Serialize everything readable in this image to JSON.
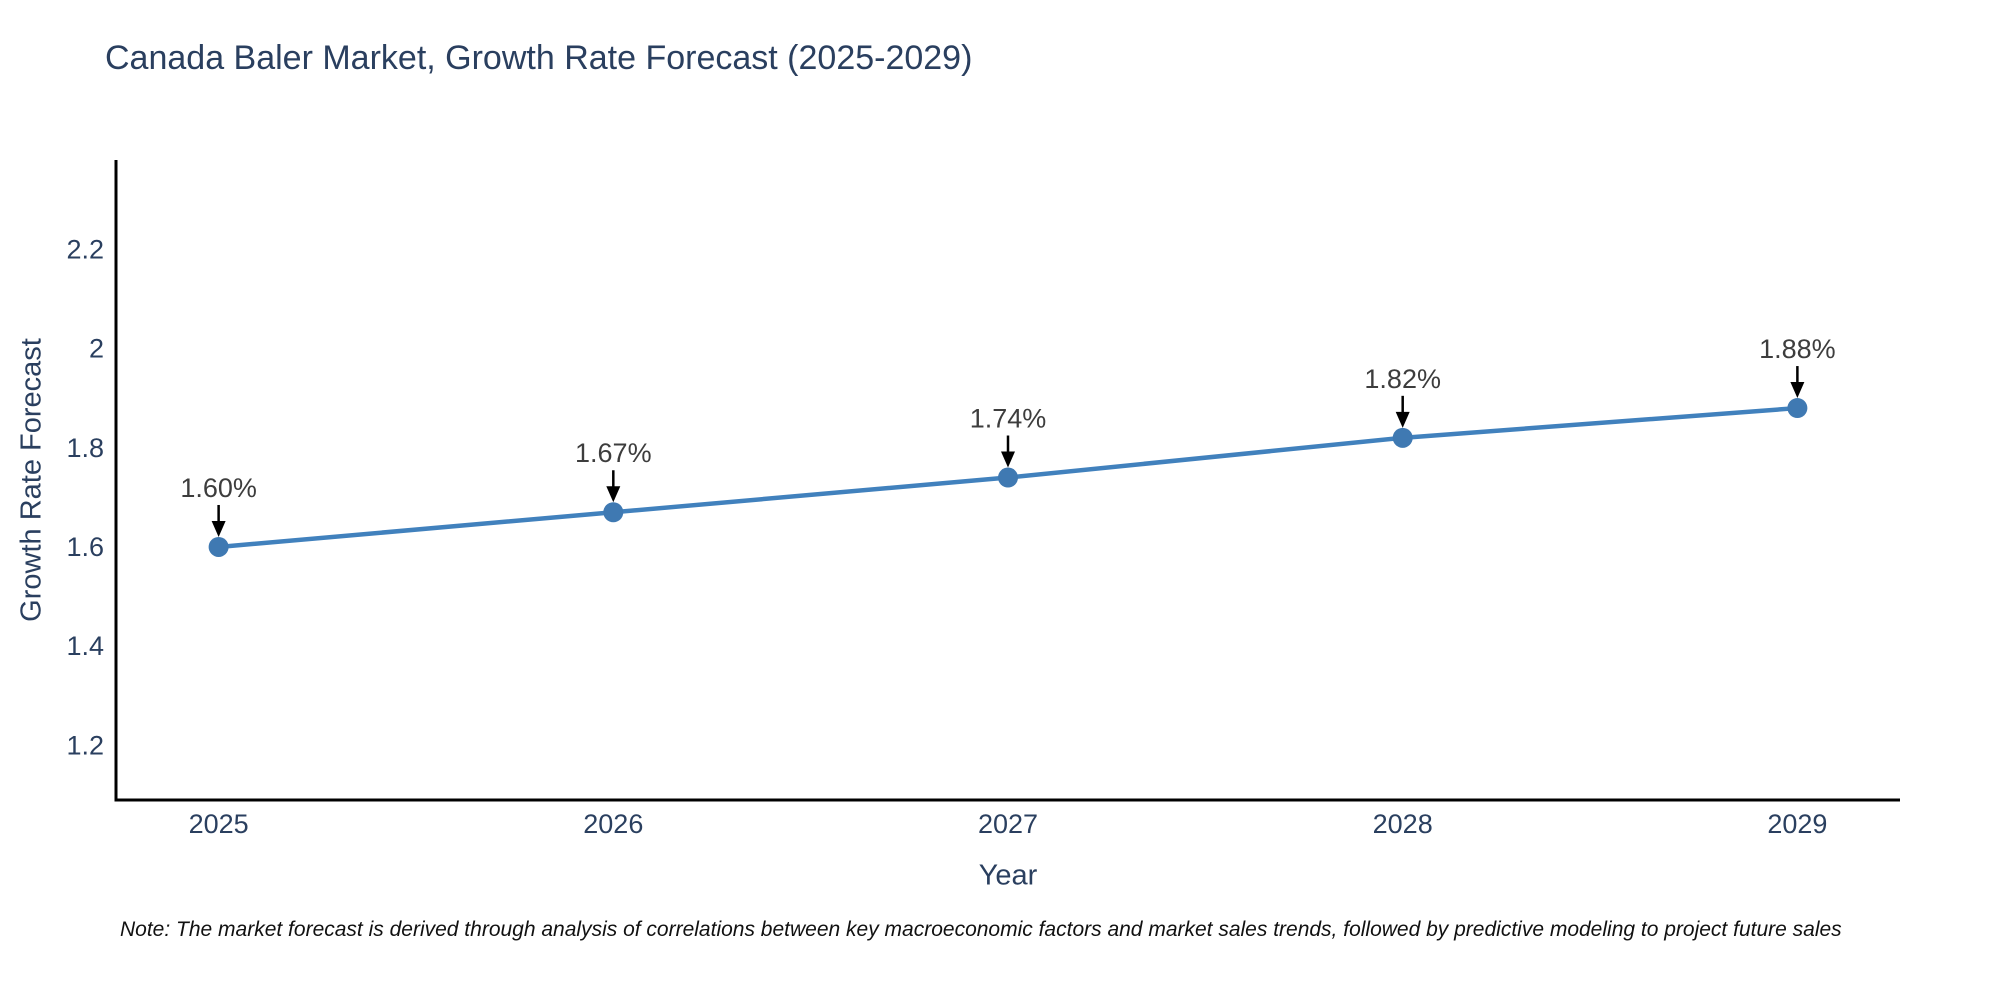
{
  "title": {
    "text": "Canada Baler Market, Growth Rate Forecast (2025-2029)",
    "color": "#2a3f5f"
  },
  "note": {
    "text": "Note: The market forecast is derived through analysis of correlations between key macroeconomic factors and market sales trends, followed by predictive modeling to project future sales",
    "color": "#111111"
  },
  "chart_data": {
    "type": "line",
    "title": "Canada Baler Market, Growth Rate Forecast (2025-2029)",
    "xlabel": "Year",
    "ylabel": "Growth Rate Forecast",
    "x": [
      2025,
      2026,
      2027,
      2028,
      2029
    ],
    "series": [
      {
        "name": "Growth Rate Forecast",
        "values": [
          1.6,
          1.67,
          1.74,
          1.82,
          1.88
        ]
      }
    ],
    "point_labels": [
      "1.60%",
      "1.67%",
      "1.74%",
      "1.82%",
      "1.88%"
    ],
    "xticks": [
      {
        "value": 2025,
        "label": "2025"
      },
      {
        "value": 2026,
        "label": "2026"
      },
      {
        "value": 2027,
        "label": "2027"
      },
      {
        "value": 2028,
        "label": "2028"
      },
      {
        "value": 2029,
        "label": "2029"
      }
    ],
    "yticks": [
      {
        "value": 1.2,
        "label": "1.2"
      },
      {
        "value": 1.4,
        "label": "1.4"
      },
      {
        "value": 1.6,
        "label": "1.6"
      },
      {
        "value": 1.8,
        "label": "1.8"
      },
      {
        "value": 2.0,
        "label": "2"
      },
      {
        "value": 2.2,
        "label": "2.2"
      }
    ],
    "xlim": [
      2024.74,
      2029.26
    ],
    "ylim": [
      1.09,
      2.38
    ],
    "grid": false,
    "legend": false,
    "line_color": "#4181bd",
    "marker_color": "#3f79b2",
    "axis_color": "#000000",
    "tick_color": "#2a3f5f",
    "font_color": "#2a3f5f",
    "annotation_color": "#3d3d3d",
    "arrow_color": "#000000"
  }
}
